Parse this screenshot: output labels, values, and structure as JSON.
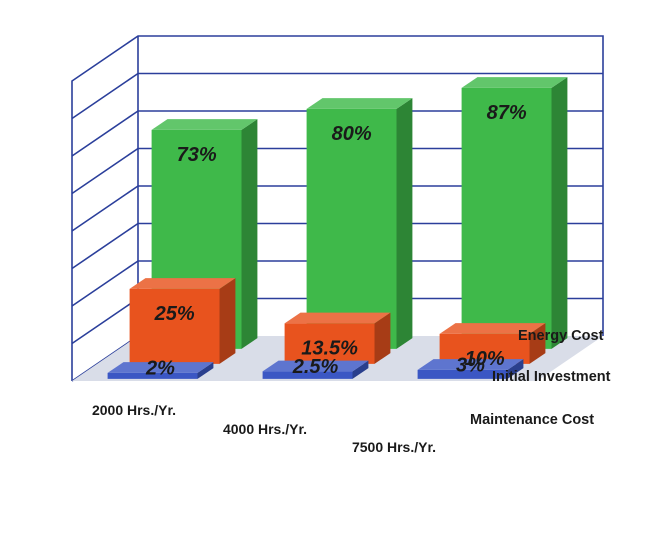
{
  "chart_data": {
    "type": "bar",
    "categories": [
      "2000 Hrs./Yr.",
      "4000 Hrs./Yr.",
      "7500 Hrs./Yr."
    ],
    "series": [
      {
        "name": "Maintenance Cost",
        "values": [
          2,
          2.5,
          3
        ],
        "labels": [
          "2%",
          "2.5%",
          "3%"
        ],
        "color": "#3b57c4"
      },
      {
        "name": "Initial Investment",
        "values": [
          25,
          13.5,
          10
        ],
        "labels": [
          "25%",
          "13.5%",
          "10%"
        ],
        "color": "#e8531e"
      },
      {
        "name": "Energy Cost",
        "values": [
          73,
          80,
          87
        ],
        "labels": [
          "73%",
          "80%",
          "87%"
        ],
        "color": "#3fb94a"
      }
    ],
    "ylim": [
      0,
      100
    ],
    "grid": true,
    "title": "",
    "xlabel": "",
    "ylabel": "",
    "colors": {
      "wall_line": "#2b3f9b",
      "floor": "#d9dde8"
    }
  }
}
